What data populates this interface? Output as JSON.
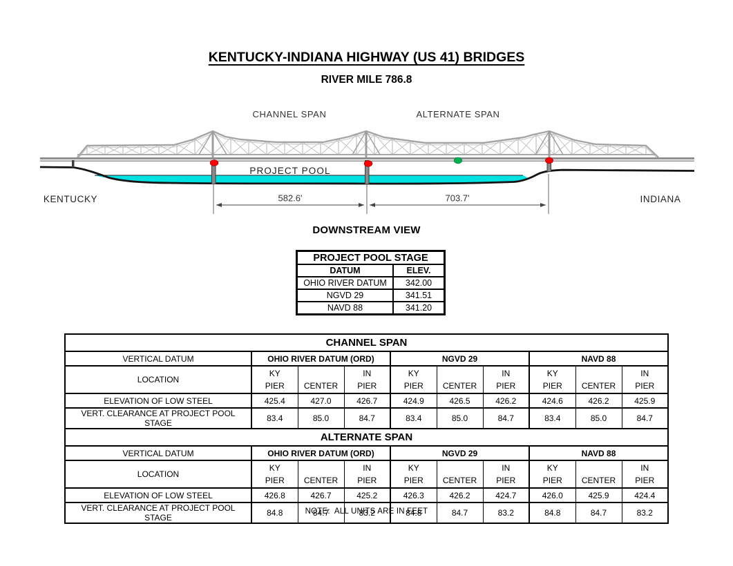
{
  "page": {
    "title": "KENTUCKY-INDIANA HIGHWAY (US 41) BRIDGES",
    "subtitle": "RIVER MILE 786.8",
    "view_label": "DOWNSTREAM VIEW",
    "note": "NOTE:  ALL UNITS ARE IN FEET"
  },
  "diagram": {
    "channel_span_label": "CHANNEL SPAN",
    "alternate_span_label": "ALTERNATE SPAN",
    "project_pool_label": "PROJECT POOL",
    "left_state": "KENTUCKY",
    "right_state": "INDIANA",
    "channel_span_length": "582.6'",
    "alternate_span_length": "703.7'",
    "colors": {
      "water": "#00E2E2",
      "pier_marker_red": "#FF0000",
      "center_marker_green": "#00B050",
      "truss_gray": "#A8A8A8",
      "shore_black": "#141414"
    }
  },
  "pool_stage_table": {
    "title": "PROJECT POOL STAGE",
    "columns": [
      "DATUM",
      "ELEV."
    ],
    "rows": [
      [
        "OHIO RIVER DATUM",
        "342.00"
      ],
      [
        "NGVD 29",
        "341.51"
      ],
      [
        "NAVD 88",
        "341.20"
      ]
    ]
  },
  "span_tables": [
    {
      "title": "CHANNEL SPAN",
      "row_labels": {
        "vertical_datum": "VERTICAL DATUM",
        "location": "LOCATION",
        "elevation": "ELEVATION OF LOW STEEL",
        "clearance": "VERT. CLEARANCE AT PROJECT POOL STAGE"
      },
      "datums": [
        "OHIO RIVER DATUM (ORD)",
        "NGVD 29",
        "NAVD 88"
      ],
      "pier_headers": [
        [
          "KY",
          "PIER"
        ],
        [
          "",
          "CENTER"
        ],
        [
          "IN",
          "PIER"
        ]
      ],
      "elevation_values": [
        "425.4",
        "427.0",
        "426.7",
        "424.9",
        "426.5",
        "426.2",
        "424.6",
        "426.2",
        "425.9"
      ],
      "clearance_values": [
        "83.4",
        "85.0",
        "84.7",
        "83.4",
        "85.0",
        "84.7",
        "83.4",
        "85.0",
        "84.7"
      ]
    },
    {
      "title": "ALTERNATE SPAN",
      "row_labels": {
        "vertical_datum": "VERTICAL DATUM",
        "location": "LOCATION",
        "elevation": "ELEVATION OF LOW STEEL",
        "clearance": "VERT. CLEARANCE AT PROJECT POOL STAGE"
      },
      "datums": [
        "OHIO RIVER DATUM (ORD)",
        "NGVD 29",
        "NAVD 88"
      ],
      "pier_headers": [
        [
          "KY",
          "PIER"
        ],
        [
          "",
          "CENTER"
        ],
        [
          "IN",
          "PIER"
        ]
      ],
      "elevation_values": [
        "426.8",
        "426.7",
        "425.2",
        "426.3",
        "426.2",
        "424.7",
        "426.0",
        "425.9",
        "424.4"
      ],
      "clearance_values": [
        "84.8",
        "84.7",
        "83.2",
        "84.8",
        "84.7",
        "83.2",
        "84.8",
        "84.7",
        "83.2"
      ]
    }
  ]
}
